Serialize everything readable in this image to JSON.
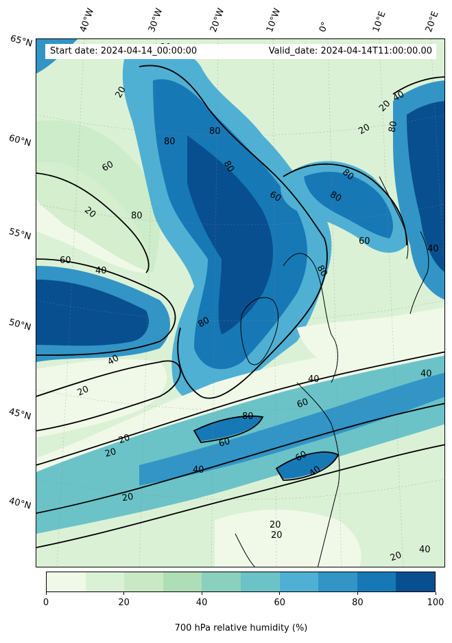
{
  "header": {
    "start_date": "Start date: 2024-04-14_00:00:00",
    "valid_date": "Valid_date: 2024-04-14T11:00:00.00"
  },
  "longitude_labels": [
    "40°W",
    "30°W",
    "20°W",
    "10°W",
    "0°",
    "10°E",
    "20°E"
  ],
  "latitude_labels": [
    "65°N",
    "60°N",
    "55°N",
    "50°N",
    "45°N",
    "40°N"
  ],
  "contour_labels": [
    "20",
    "40",
    "60",
    "80"
  ],
  "colorbar": {
    "title": "700 hPa relative humidity (%)",
    "ticks": [
      "0",
      "20",
      "40",
      "60",
      "80",
      "100"
    ],
    "colors": [
      "#f0f9e8",
      "#dbf1d6",
      "#c8e9c3",
      "#addeb6",
      "#8ad0be",
      "#6bc3c8",
      "#4fb0d3",
      "#3295c5",
      "#1778b6",
      "#084f90"
    ]
  }
}
